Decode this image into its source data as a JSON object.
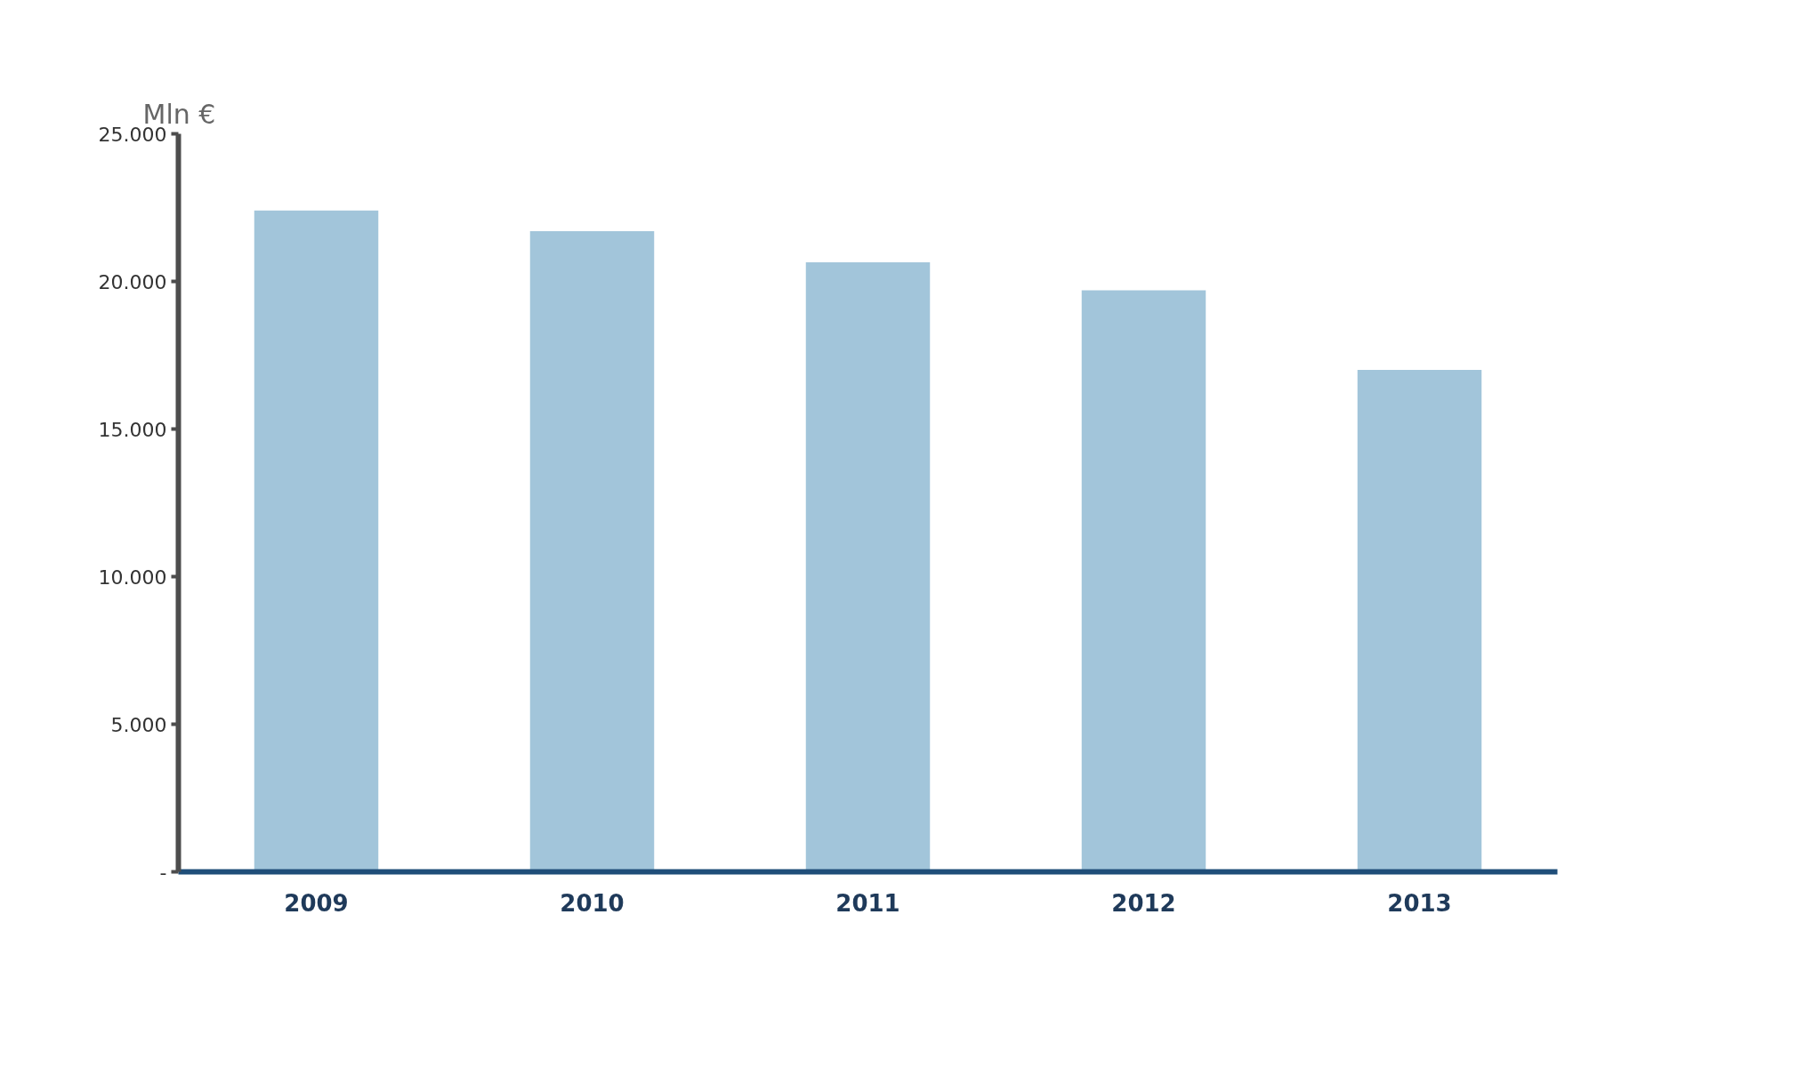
{
  "chart_data": {
    "type": "bar",
    "ylabel": "Mln €",
    "categories": [
      "2009",
      "2010",
      "2011",
      "2012",
      "2013"
    ],
    "values": [
      22400,
      21700,
      20650,
      19700,
      17000
    ],
    "color": "#a2c5da",
    "ylim": [
      0,
      25000
    ],
    "yticks": [
      {
        "value": 0,
        "label": "-"
      },
      {
        "value": 5000,
        "label": "5.000"
      },
      {
        "value": 10000,
        "label": "10.000"
      },
      {
        "value": 15000,
        "label": "15.000"
      },
      {
        "value": 20000,
        "label": "20.000"
      },
      {
        "value": 25000,
        "label": "25.000"
      }
    ],
    "grid": false
  }
}
